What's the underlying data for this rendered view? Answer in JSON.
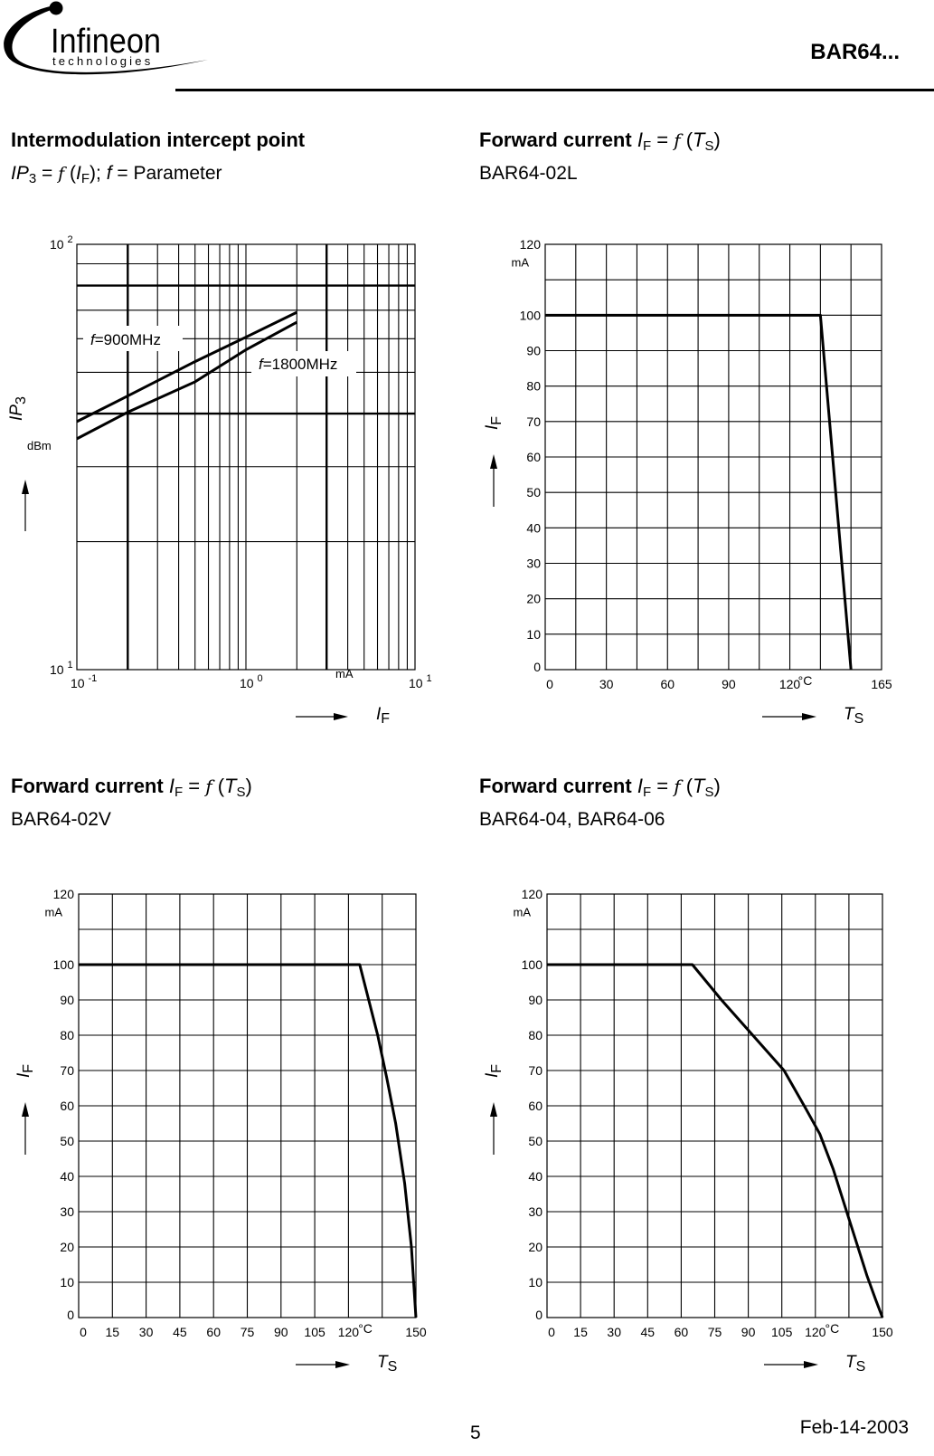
{
  "header": {
    "logo_main": "Infineon",
    "logo_sub": "technologies",
    "part_number": "BAR64..."
  },
  "sections": [
    {
      "title_bold": "Intermodulation intercept point",
      "subtitle": {
        "y": "IP",
        "y_sub": "3",
        "eq": " = ",
        "fn": "f",
        "open": " (",
        "x": "I",
        "x_sub": "F",
        "close": "); ",
        "param": "f",
        "rest": " = Parameter"
      }
    },
    {
      "title_bold": "Forward current ",
      "title_var": "I",
      "title_var_sub": "F",
      "title_eq": " = ",
      "title_fn": "f",
      "title_open": " (",
      "title_arg": "T",
      "title_arg_sub": "S",
      "title_close": ")",
      "subtitle_text": "BAR64-02L"
    },
    {
      "title_bold": "Forward current ",
      "title_var": "I",
      "title_var_sub": "F",
      "title_eq": " = ",
      "title_fn": "f",
      "title_open": " (",
      "title_arg": "T",
      "title_arg_sub": "S",
      "title_close": ")",
      "subtitle_text": "BAR64-02V"
    },
    {
      "title_bold": "Forward current ",
      "title_var": "I",
      "title_var_sub": "F",
      "title_eq": " = ",
      "title_fn": "f",
      "title_open": " (",
      "title_arg": "T",
      "title_arg_sub": "S",
      "title_close": ")",
      "subtitle_text": "BAR64-04, BAR64-06"
    }
  ],
  "footer": {
    "page_number": "5",
    "date": "Feb-14-2003"
  },
  "chart_data": [
    {
      "type": "line",
      "title": "Intermodulation intercept point",
      "subtitle": "IP3 = f (IF); f = Parameter",
      "xlabel": "IF",
      "xunit": "mA",
      "ylabel": "IP3",
      "yunit": "dBm",
      "xscale": "log",
      "yscale": "log",
      "xlim": [
        0.1,
        10
      ],
      "ylim": [
        10,
        100
      ],
      "x_tick_labels": [
        "10 -1",
        "10 0",
        "10 1"
      ],
      "y_tick_labels": [
        "10 1",
        "10 2"
      ],
      "grid": true,
      "series": [
        {
          "name": "f=900MHz",
          "x": [
            0.1,
            0.2,
            0.5,
            1.0,
            2.0
          ],
          "y": [
            38.3,
            44.0,
            53.0,
            60.5,
            69.2
          ]
        },
        {
          "name": "f=1800MHz",
          "x": [
            0.1,
            0.2,
            0.5,
            1.0,
            2.0
          ],
          "y": [
            34.9,
            40.3,
            47.5,
            56.5,
            65.6
          ]
        }
      ]
    },
    {
      "type": "line",
      "title": "Forward current IF = f (TS)",
      "subtitle": "BAR64-02L",
      "xlabel": "TS",
      "xunit": "°C",
      "ylabel": "IF",
      "yunit": "mA",
      "xlim": [
        0,
        165
      ],
      "ylim": [
        0,
        120
      ],
      "x_ticks": [
        0,
        30,
        60,
        90,
        120,
        165
      ],
      "y_ticks": [
        0,
        10,
        20,
        30,
        40,
        50,
        60,
        70,
        80,
        90,
        100,
        120
      ],
      "x_grid_step": 15,
      "grid": true,
      "series": [
        {
          "name": "BAR64-02L",
          "x": [
            0,
            135,
            138,
            141,
            144,
            147,
            150
          ],
          "y": [
            100,
            100,
            80,
            60,
            40,
            20,
            0
          ]
        }
      ]
    },
    {
      "type": "line",
      "title": "Forward current IF = f (TS)",
      "subtitle": "BAR64-02V",
      "xlabel": "TS",
      "xunit": "°C",
      "ylabel": "IF",
      "yunit": "mA",
      "xlim": [
        0,
        150
      ],
      "ylim": [
        0,
        120
      ],
      "x_ticks": [
        0,
        15,
        30,
        45,
        60,
        75,
        90,
        105,
        120,
        150
      ],
      "y_ticks": [
        0,
        10,
        20,
        30,
        40,
        50,
        60,
        70,
        80,
        90,
        100,
        120
      ],
      "grid": true,
      "series": [
        {
          "name": "BAR64-02V",
          "x": [
            0,
            125,
            129,
            133,
            137,
            141,
            145,
            148,
            150
          ],
          "y": [
            100,
            100,
            90,
            80,
            68,
            55,
            38,
            20,
            0
          ]
        }
      ]
    },
    {
      "type": "line",
      "title": "Forward current IF = f (TS)",
      "subtitle": "BAR64-04, BAR64-06",
      "xlabel": "TS",
      "xunit": "°C",
      "ylabel": "IF",
      "yunit": "mA",
      "xlim": [
        0,
        150
      ],
      "ylim": [
        0,
        120
      ],
      "x_ticks": [
        0,
        15,
        30,
        45,
        60,
        75,
        90,
        105,
        120,
        150
      ],
      "y_ticks": [
        0,
        10,
        20,
        30,
        40,
        50,
        60,
        70,
        80,
        90,
        100,
        120
      ],
      "grid": true,
      "series": [
        {
          "name": "BAR64-04, BAR64-06",
          "x": [
            0,
            65,
            78,
            92,
            106,
            115,
            122,
            128,
            133,
            138,
            143,
            147,
            150
          ],
          "y": [
            100,
            100,
            90,
            80,
            70,
            60,
            52,
            42,
            32,
            22,
            12,
            5,
            0
          ]
        }
      ]
    }
  ]
}
